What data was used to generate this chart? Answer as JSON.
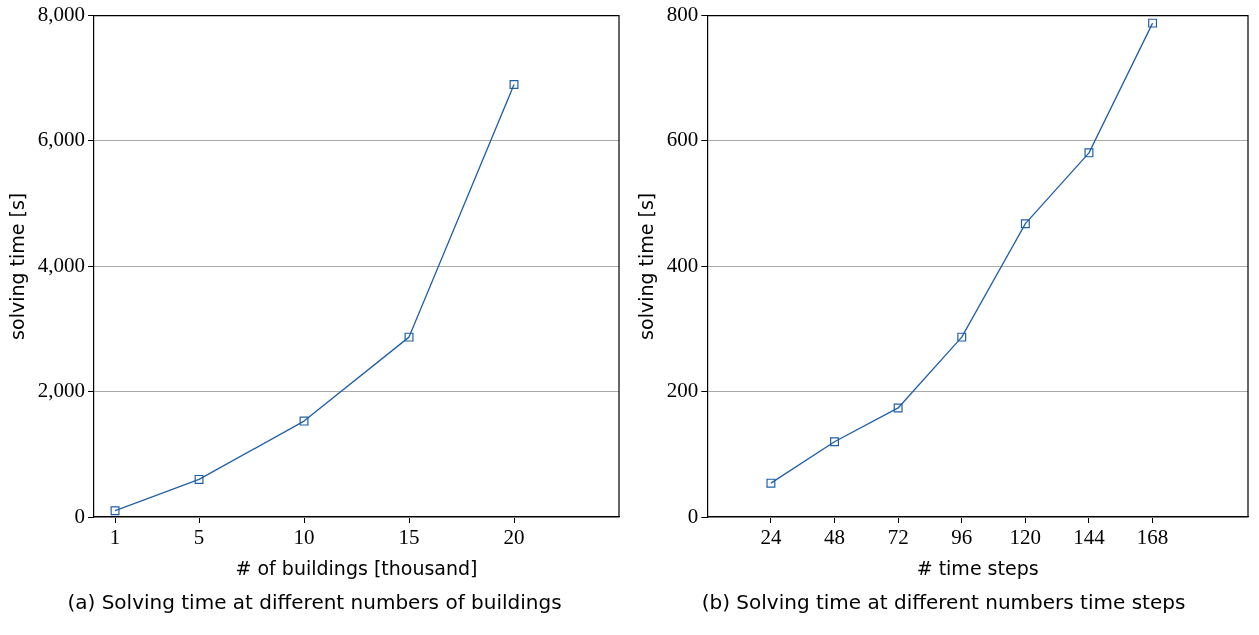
{
  "chart_data": [
    {
      "type": "line",
      "xlabel": "# of buildings [thousand]",
      "ylabel": "solving time [s]",
      "annotations": [
        "(a) Solving time at different numbers of buildings"
      ],
      "x": [
        1,
        5,
        10,
        15,
        20
      ],
      "series": [
        {
          "color": "#1f5fa8",
          "values": [
            100,
            600,
            1530,
            2870,
            6900
          ]
        }
      ],
      "xlim": [
        0,
        25
      ],
      "xticks": [
        1,
        5,
        10,
        15,
        20
      ],
      "ylim": [
        0,
        8000
      ],
      "yticks": [
        0,
        {
          "value": 2000,
          "label": "2,000"
        },
        {
          "value": 4000,
          "label": "4,000"
        },
        {
          "value": 6000,
          "label": "6,000"
        },
        {
          "value": 8000,
          "label": "8,000"
        }
      ],
      "grid": "y",
      "legend": false,
      "marker": "square",
      "line_style": "solid"
    },
    {
      "type": "line",
      "xlabel": "# time steps",
      "ylabel": "solving time [s]",
      "annotations": [
        "(b) Solving time at different numbers time steps"
      ],
      "x": [
        24,
        48,
        72,
        96,
        120,
        144,
        168
      ],
      "series": [
        {
          "color": "#1f5fa8",
          "values": [
            54,
            120,
            174,
            287,
            468,
            581,
            788
          ]
        }
      ],
      "xlim": [
        0,
        204
      ],
      "xticks": [
        24,
        48,
        72,
        96,
        120,
        144,
        168
      ],
      "ylim": [
        0,
        800
      ],
      "yticks": [
        0,
        200,
        400,
        600,
        800
      ],
      "grid": "y",
      "legend": false,
      "marker": "square",
      "line_style": "solid"
    }
  ]
}
